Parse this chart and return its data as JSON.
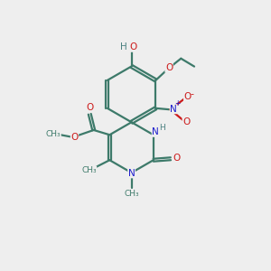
{
  "bg_color": "#eeeeee",
  "bond_color": "#3d7a6a",
  "n_color": "#1a1acc",
  "o_color": "#cc1a1a",
  "h_color": "#4a8080",
  "line_width": 1.6,
  "fig_size": [
    3.0,
    3.0
  ],
  "dpi": 100,
  "xlim": [
    0,
    10
  ],
  "ylim": [
    0,
    10
  ]
}
